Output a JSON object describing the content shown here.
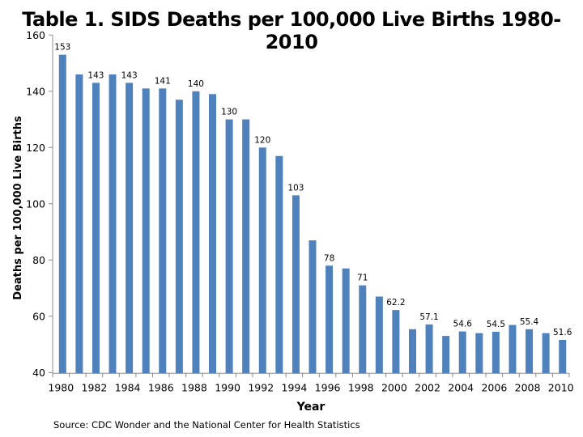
{
  "chart_data": {
    "type": "bar",
    "title": "Table 1. SIDS Deaths per 100,000 Live Births 1980-2010",
    "xlabel": "Year",
    "ylabel": "Deaths per 100,000 Live Births",
    "ylim": [
      40,
      160
    ],
    "yticks": [
      40,
      60,
      80,
      100,
      120,
      140,
      160
    ],
    "grid": false,
    "legend": "none",
    "bar_color": "#4F81BD",
    "categories": [
      "1980",
      "1981",
      "1982",
      "1983",
      "1984",
      "1985",
      "1986",
      "1987",
      "1988",
      "1989",
      "1990",
      "1991",
      "1992",
      "1993",
      "1994",
      "1995",
      "1996",
      "1997",
      "1998",
      "1999",
      "2000",
      "2001",
      "2002",
      "2003",
      "2004",
      "2005",
      "2006",
      "2007",
      "2008",
      "2009",
      "2010"
    ],
    "xtick_labels": [
      "1980",
      "1982",
      "1984",
      "1986",
      "1988",
      "1990",
      "1992",
      "1994",
      "1996",
      "1998",
      "2000",
      "2002",
      "2004",
      "2006",
      "2008",
      "2010"
    ],
    "values": [
      153,
      146,
      143,
      146,
      143,
      141,
      141,
      137,
      140,
      139,
      130,
      130,
      120,
      117,
      103,
      87,
      78,
      77,
      71,
      67,
      62.2,
      55.4,
      57.1,
      53,
      54.6,
      54,
      54.5,
      56.9,
      55.4,
      54,
      51.6
    ],
    "data_labels": [
      "153",
      "",
      "143",
      "",
      "143",
      "",
      "141",
      "",
      "140",
      "",
      "130",
      "",
      "120",
      "",
      "103",
      "",
      "78",
      "",
      "71",
      "",
      "62.2",
      "",
      "57.1",
      "",
      "54.6",
      "",
      "54.5",
      "",
      "55.4",
      "",
      "51.6"
    ],
    "source": "Source: CDC Wonder and the National Center for Health Statistics"
  }
}
